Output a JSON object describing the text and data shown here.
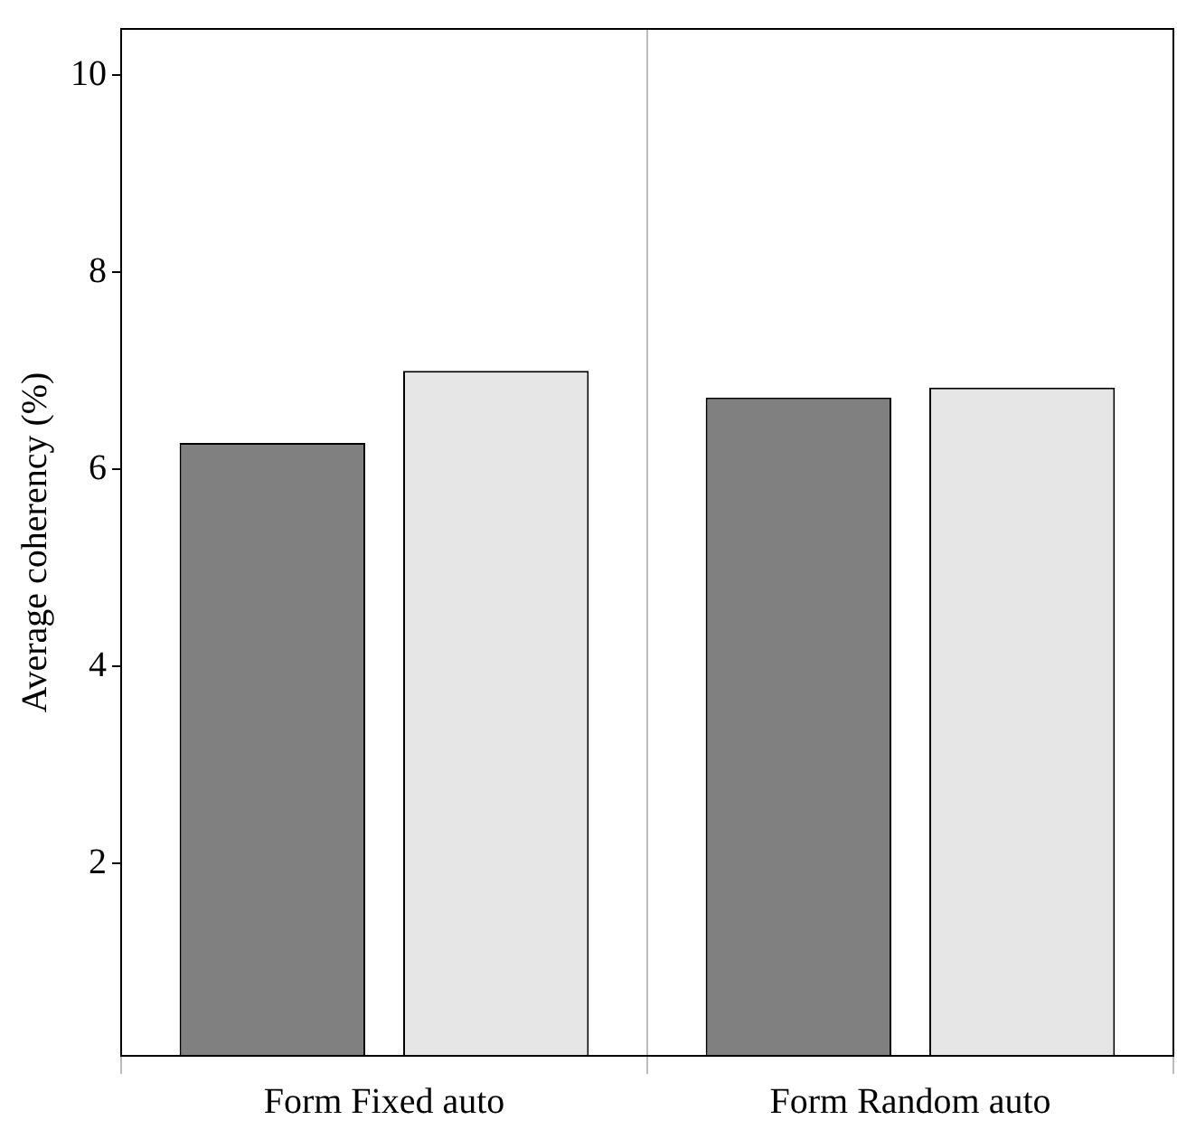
{
  "chart_data": {
    "type": "bar",
    "ylabel": "Average coherency (%)",
    "categories": [
      "Form Fixed auto",
      "Form Random auto"
    ],
    "series": [
      {
        "color": "#808080",
        "values": [
          6.27,
          6.73
        ]
      },
      {
        "color": "#e6e6e6",
        "values": [
          7.0,
          6.83
        ]
      }
    ],
    "ylim": [
      0.05,
      10.47
    ],
    "yticks": [
      2,
      4,
      6,
      8,
      10
    ],
    "grid": "x",
    "legend": false
  }
}
